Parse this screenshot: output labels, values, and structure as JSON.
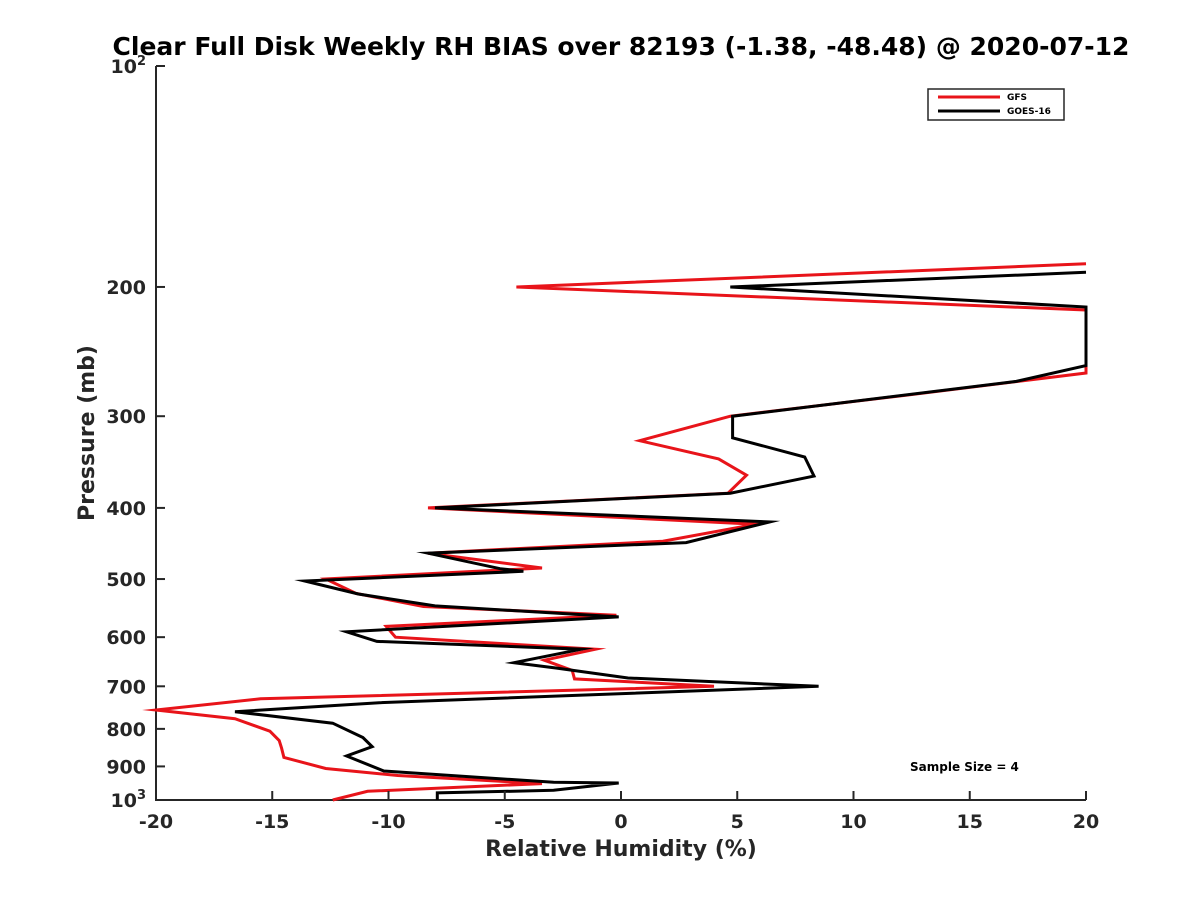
{
  "chart_data": {
    "type": "line",
    "title": "Clear Full Disk Weekly RH BIAS over 82193 (-1.38, -48.48) @ 2020-07-12",
    "xlabel": "Relative Humidity (%)",
    "ylabel": "Pressure (mb)",
    "xlim": [
      -20,
      20
    ],
    "ylim": [
      100,
      1000
    ],
    "y_scale": "log",
    "y_reversed": true,
    "grid": false,
    "legend_position": "top-right",
    "x_ticks": [
      "-20",
      "-15",
      "-10",
      "-5",
      "0",
      "5",
      "10",
      "15",
      "20"
    ],
    "y_ticks": [
      {
        "value": 100,
        "base": "10",
        "exp": "2"
      },
      {
        "value": 200,
        "label": "200"
      },
      {
        "value": 300,
        "label": "300"
      },
      {
        "value": 400,
        "label": "400"
      },
      {
        "value": 500,
        "label": "500"
      },
      {
        "value": 600,
        "label": "600"
      },
      {
        "value": 700,
        "label": "700"
      },
      {
        "value": 800,
        "label": "800"
      },
      {
        "value": 900,
        "label": "900"
      },
      {
        "value": 1000,
        "base": "10",
        "exp": "3"
      }
    ],
    "series": [
      {
        "name": "GFS",
        "color": "#e8141a",
        "points": [
          [
            20,
            186
          ],
          [
            -4.5,
            200
          ],
          [
            20,
            215
          ],
          [
            20,
            262
          ],
          [
            12.2,
            281
          ],
          [
            4.7,
            300
          ],
          [
            0.8,
            324
          ],
          [
            4.2,
            343
          ],
          [
            5.4,
            361
          ],
          [
            4.6,
            382
          ],
          [
            -8.3,
            400
          ],
          [
            5.8,
            421
          ],
          [
            1.8,
            444
          ],
          [
            -8.3,
            461
          ],
          [
            -3.4,
            483
          ],
          [
            -12.7,
            500
          ],
          [
            -11.4,
            523
          ],
          [
            -8.5,
            545
          ],
          [
            -0.2,
            560
          ],
          [
            -10.1,
            580
          ],
          [
            -9.7,
            600
          ],
          [
            -1.1,
            623
          ],
          [
            -3.3,
            645
          ],
          [
            -2.1,
            666
          ],
          [
            -2,
            684
          ],
          [
            4,
            700
          ],
          [
            -15.5,
            728
          ],
          [
            -20,
            754
          ],
          [
            -16.6,
            775
          ],
          [
            -15.1,
            806
          ],
          [
            -14.7,
            830
          ],
          [
            -14.6,
            850
          ],
          [
            -14.5,
            875
          ],
          [
            -12.7,
            906
          ],
          [
            -9.6,
            926
          ],
          [
            -3.4,
            950
          ],
          [
            -10.9,
            973
          ],
          [
            -12.4,
            1000
          ]
        ]
      },
      {
        "name": "GOES-16",
        "color": "#000000",
        "points": [
          [
            20,
            191
          ],
          [
            4.7,
            200
          ],
          [
            20,
            213
          ],
          [
            20,
            256
          ],
          [
            17,
            269
          ],
          [
            4.8,
            300
          ],
          [
            4.8,
            321
          ],
          [
            7.9,
            341
          ],
          [
            8.3,
            362
          ],
          [
            4.7,
            382
          ],
          [
            -8,
            400
          ],
          [
            6.4,
            418
          ],
          [
            2.8,
            446
          ],
          [
            -8.3,
            461
          ],
          [
            -5.2,
            484
          ],
          [
            -4.2,
            488
          ],
          [
            -13.6,
            503
          ],
          [
            -11.3,
            524
          ],
          [
            -8,
            544
          ],
          [
            -0.1,
            563
          ],
          [
            -11.8,
            590
          ],
          [
            -10.5,
            608
          ],
          [
            -1.7,
            623
          ],
          [
            -4.6,
            650
          ],
          [
            -2.8,
            661
          ],
          [
            0.3,
            682
          ],
          [
            8.5,
            700
          ],
          [
            -10.4,
            737
          ],
          [
            -16.6,
            758
          ],
          [
            -12.4,
            786
          ],
          [
            -11.1,
            822
          ],
          [
            -10.7,
            846
          ],
          [
            -11.8,
            871
          ],
          [
            -10.2,
            913
          ],
          [
            -2.9,
            946
          ],
          [
            -0.1,
            948
          ],
          [
            -2.9,
            970
          ],
          [
            -7.9,
            978
          ],
          [
            -7.9,
            1000
          ]
        ]
      }
    ],
    "annotation": "Sample Size = 4"
  }
}
